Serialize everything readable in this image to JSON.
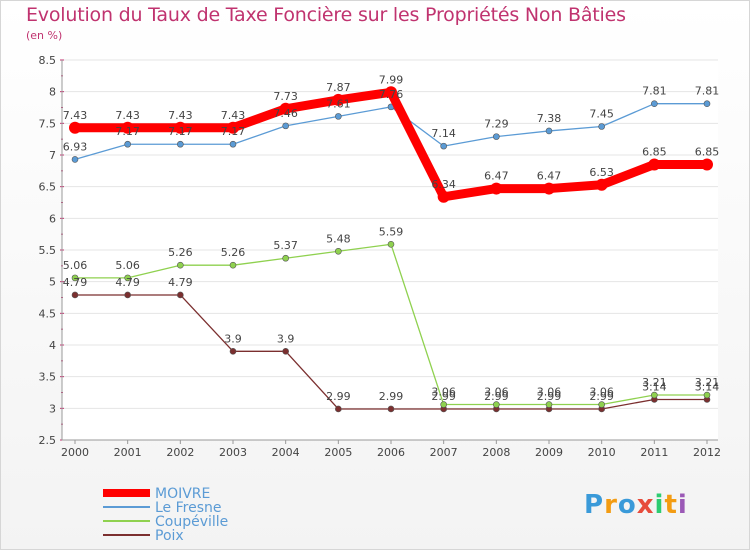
{
  "chart_data": {
    "type": "line",
    "title": "Evolution du Taux de Taxe Foncière sur les Propriétés Non Bâties",
    "unit_label": "(en %)",
    "categories": [
      "2000",
      "2001",
      "2002",
      "2003",
      "2004",
      "2005",
      "2006",
      "2007",
      "2008",
      "2009",
      "2010",
      "2011",
      "2012"
    ],
    "ylim": [
      2.5,
      8.5
    ],
    "yticks": [
      "2.5",
      "3",
      "3.5",
      "4",
      "4.5",
      "5",
      "5.5",
      "6",
      "6.5",
      "7",
      "7.5",
      "8",
      "8.5"
    ],
    "series": [
      {
        "name": "MOIVRE",
        "color": "#ff0000",
        "values": [
          7.43,
          7.43,
          7.43,
          7.43,
          7.73,
          7.87,
          7.99,
          6.34,
          6.47,
          6.47,
          6.53,
          6.85,
          6.85
        ],
        "labels": [
          "7.43",
          "7.43",
          "7.43",
          "7.43",
          "7.73",
          "7.87",
          "7.99",
          "6.34",
          "6.47",
          "6.47",
          "6.53",
          "6.85",
          "6.85"
        ]
      },
      {
        "name": "Le Fresne",
        "color": "#5b9bd5",
        "values": [
          6.93,
          7.17,
          7.17,
          7.17,
          7.46,
          7.61,
          7.76,
          7.14,
          7.29,
          7.38,
          7.45,
          7.81,
          7.81
        ],
        "labels": [
          "6.93",
          "7.17",
          "7.17",
          "7.17",
          "7.46",
          "7.61",
          "7.76",
          "7.14",
          "7.29",
          "7.38",
          "7.45",
          "7.81",
          "7.81"
        ]
      },
      {
        "name": "Coupéville",
        "color": "#8fd14f",
        "values": [
          5.06,
          5.06,
          5.26,
          5.26,
          5.37,
          5.48,
          5.59,
          3.06,
          3.06,
          3.06,
          3.06,
          3.21,
          3.21
        ],
        "labels": [
          "5.06",
          "5.06",
          "5.26",
          "5.26",
          "5.37",
          "5.48",
          "5.59",
          "3.06",
          "3.06",
          "3.06",
          "3.06",
          "3.21",
          "3.21"
        ]
      },
      {
        "name": "Poix",
        "color": "#7b2f2f",
        "values": [
          4.79,
          4.79,
          4.79,
          3.9,
          3.9,
          2.99,
          2.99,
          2.99,
          2.99,
          2.99,
          2.99,
          3.14,
          3.14
        ],
        "labels": [
          "4.79",
          "4.79",
          "4.79",
          "3.9",
          "3.9",
          "2.99",
          "2.99",
          "2.99",
          "2.99",
          "2.99",
          "2.99",
          "3.14",
          "3.14"
        ]
      }
    ]
  },
  "logo": {
    "text": "Proxiti",
    "letters": [
      "P",
      "r",
      "o",
      "x",
      "i",
      "t",
      "i"
    ],
    "colors": [
      "#3a9ad9",
      "#f39c12",
      "#3a9ad9",
      "#e74c3c",
      "#2ecc71",
      "#f39c12",
      "#9b59b6"
    ]
  }
}
